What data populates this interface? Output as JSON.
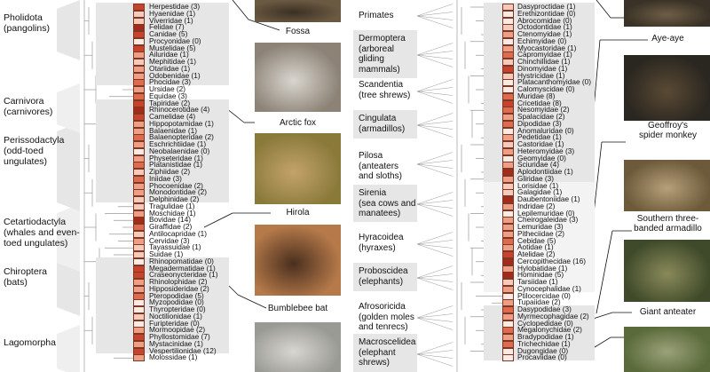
{
  "colors": {
    "band": "#e6e6e6",
    "branch": "#9a9a9a",
    "risk_scale": [
      "#fbe9e2",
      "#f6c9b8",
      "#ef9d83",
      "#e06a4c",
      "#c8432a",
      "#a52a17"
    ]
  },
  "left_orders": [
    {
      "name": "Pholidota\n(pangolins)"
    },
    {
      "name": "Carnivora\n(carnivores)"
    },
    {
      "name": "Perissodactyla\n(odd-toed\nungulates)"
    },
    {
      "name": "Cetartiodactyla\n(whales and even-\ntoed ungulates)"
    },
    {
      "name": "Chiroptera\n(bats)"
    },
    {
      "name": "Lagomorpha"
    }
  ],
  "left_families": [
    {
      "label": "Herpestidae (3)",
      "level": 4
    },
    {
      "label": "Hyaenidae (1)",
      "level": 1
    },
    {
      "label": "Viverridae (1)",
      "level": 1
    },
    {
      "label": "Felidae (7)",
      "level": 5
    },
    {
      "label": "Canidae (5)",
      "level": 4
    },
    {
      "label": "Procyonidae (0)",
      "level": 0
    },
    {
      "label": "Mustelidae (5)",
      "level": 4
    },
    {
      "label": "Ailuridae (1)",
      "level": 2
    },
    {
      "label": "Mephitidae (1)",
      "level": 1
    },
    {
      "label": "Otariidae (1)",
      "level": 2
    },
    {
      "label": "Odobenidae (1)",
      "level": 2
    },
    {
      "label": "Phocidae (3)",
      "level": 3
    },
    {
      "label": "Ursidae (2)",
      "level": 2
    },
    {
      "label": "Equidae (3)",
      "level": 3
    },
    {
      "label": "Tapiridae (2)",
      "level": 4
    },
    {
      "label": "Rhinocerotidae (4)",
      "level": 5
    },
    {
      "label": "Camelidae (4)",
      "level": 4
    },
    {
      "label": "Hippopotamidae (1)",
      "level": 2
    },
    {
      "label": "Balaenidae (1)",
      "level": 2
    },
    {
      "label": "Balaenopteridae (2)",
      "level": 3
    },
    {
      "label": "Eschrichtiidae (1)",
      "level": 2
    },
    {
      "label": "Neobalaenidae (0)",
      "level": 0
    },
    {
      "label": "Physeteridae (1)",
      "level": 2
    },
    {
      "label": "Platanistidae (1)",
      "level": 3
    },
    {
      "label": "Ziphiidae (2)",
      "level": 1
    },
    {
      "label": "Iniidae (3)",
      "level": 3
    },
    {
      "label": "Phocoenidae (2)",
      "level": 2
    },
    {
      "label": "Monodontidae (2)",
      "level": 2
    },
    {
      "label": "Delphinidae (2)",
      "level": 1
    },
    {
      "label": "Tragulidae (1)",
      "level": 1
    },
    {
      "label": "Moschidae (1)",
      "level": 2
    },
    {
      "label": "Bovidae (14)",
      "level": 5
    },
    {
      "label": "Giraffidae (2)",
      "level": 3
    },
    {
      "label": "Antilocapridae (1)",
      "level": 1
    },
    {
      "label": "Cervidae (3)",
      "level": 2
    },
    {
      "label": "Tayassuidae (1)",
      "level": 1
    },
    {
      "label": "Suidae (1)",
      "level": 1
    },
    {
      "label": "Rhinopomatidae (0)",
      "level": 0
    },
    {
      "label": "Megadermatidae (1)",
      "level": 4
    },
    {
      "label": "Craseonycteridae (1)",
      "level": 4
    },
    {
      "label": "Rhinolophidae (2)",
      "level": 2
    },
    {
      "label": "Hipposideridae (2)",
      "level": 2
    },
    {
      "label": "Pteropodidae (5)",
      "level": 3
    },
    {
      "label": "Myzopodidae (0)",
      "level": 0
    },
    {
      "label": "Thyropteridae (0)",
      "level": 0
    },
    {
      "label": "Noctilionidae (1)",
      "level": 1
    },
    {
      "label": "Furipteridae (0)",
      "level": 0
    },
    {
      "label": "Mormoopidae (2)",
      "level": 2
    },
    {
      "label": "Phyllostomidae (7)",
      "level": 4
    },
    {
      "label": "Mystacinidae (1)",
      "level": 2
    },
    {
      "label": "Vespertilionidae (12)",
      "level": 4
    },
    {
      "label": "Molossidae (1)",
      "level": 2
    }
  ],
  "right_orders": [
    {
      "name": "Primates"
    },
    {
      "name": "Dermoptera\n(arboreal\ngliding\nmammals)"
    },
    {
      "name": "Scandentia\n(tree shrews)"
    },
    {
      "name": "Cingulata\n(armadillos)"
    },
    {
      "name": "Pilosa\n(anteaters\nand sloths)"
    },
    {
      "name": "Sirenia\n(sea cows and\nmanatees)"
    },
    {
      "name": "Hyracoidea\n(hyraxes)"
    },
    {
      "name": "Proboscidea\n(elephants)"
    },
    {
      "name": "Afrosoricida\n(golden moles\nand tenrecs)"
    },
    {
      "name": "Macroscelidea\n(elephant\nshrews)"
    }
  ],
  "right_families": [
    {
      "label": "Dasyproctidae (1)",
      "level": 1
    },
    {
      "label": "Erethizontidae (0)",
      "level": 0
    },
    {
      "label": "Abrocomidae (0)",
      "level": 0
    },
    {
      "label": "Octodontidae (1)",
      "level": 1
    },
    {
      "label": "Ctenomyidae (1)",
      "level": 2
    },
    {
      "label": "Echimyidae (0)",
      "level": 0
    },
    {
      "label": "Myocastoridae (1)",
      "level": 2
    },
    {
      "label": "Capromyidae (1)",
      "level": 3
    },
    {
      "label": "Chinchillidae (1)",
      "level": 1
    },
    {
      "label": "Dinomyidae (1)",
      "level": 4
    },
    {
      "label": "Hystricidae (1)",
      "level": 1
    },
    {
      "label": "Platacanthomyidae (0)",
      "level": 0
    },
    {
      "label": "Calomyscidae (0)",
      "level": 0
    },
    {
      "label": "Muridae (8)",
      "level": 3
    },
    {
      "label": "Cricetidae (8)",
      "level": 4
    },
    {
      "label": "Nesomyidae (2)",
      "level": 3
    },
    {
      "label": "Spalacidae (2)",
      "level": 2
    },
    {
      "label": "Dipodidae (3)",
      "level": 3
    },
    {
      "label": "Anomaluridae (0)",
      "level": 0
    },
    {
      "label": "Pedetidae (1)",
      "level": 2
    },
    {
      "label": "Castoridae (1)",
      "level": 1
    },
    {
      "label": "Heteromyidae (3)",
      "level": 2
    },
    {
      "label": "Geomyidae (0)",
      "level": 0
    },
    {
      "label": "Sciuridae (4)",
      "level": 2
    },
    {
      "label": "Aplodontiidae (1)",
      "level": 5
    },
    {
      "label": "Gliridae (3)",
      "level": 2
    },
    {
      "label": "Lorisidae (1)",
      "level": 1
    },
    {
      "label": "Galagidae (1)",
      "level": 1
    },
    {
      "label": "Daubentoniidae (1)",
      "level": 5
    },
    {
      "label": "Indridae (2)",
      "level": 2
    },
    {
      "label": "Lepilemuridae (0)",
      "level": 0
    },
    {
      "label": "Cheirogaleidae (3)",
      "level": 2
    },
    {
      "label": "Lemuridae (3)",
      "level": 2
    },
    {
      "label": "Pitheciidae (2)",
      "level": 2
    },
    {
      "label": "Cebidae (5)",
      "level": 3
    },
    {
      "label": "Aotidae (1)",
      "level": 2
    },
    {
      "label": "Atelidae (2)",
      "level": 4
    },
    {
      "label": "Cercopithecidae (16)",
      "level": 5
    },
    {
      "label": "Hylobatidae (1)",
      "level": 2
    },
    {
      "label": "Hominidae (5)",
      "level": 5
    },
    {
      "label": "Tarsiidae (1)",
      "level": 1
    },
    {
      "label": "Cynocephalidae (1)",
      "level": 2
    },
    {
      "label": "Ptilocercidae (0)",
      "level": 0
    },
    {
      "label": "Tupaiidae (2)",
      "level": 2
    },
    {
      "label": "Dasypodidae (3)",
      "level": 3
    },
    {
      "label": "Myrmecophagidae (2)",
      "level": 2
    },
    {
      "label": "Cyclopedidae (0)",
      "level": 0
    },
    {
      "label": "Megalonychidae (2)",
      "level": 3
    },
    {
      "label": "Bradypodidae (1)",
      "level": 2
    },
    {
      "label": "Trichechidae (1)",
      "level": 3
    },
    {
      "label": "Dugongidae (0)",
      "level": 0
    },
    {
      "label": "Procaviidae (0)",
      "level": 0
    }
  ],
  "mid_photos": [
    {
      "label": "Fossa",
      "icon": "fossa-photo"
    },
    {
      "label": "Arctic fox",
      "icon": "arctic-fox-photo"
    },
    {
      "label": "Hirola",
      "icon": "hirola-photo"
    },
    {
      "label": "Bumblebee bat",
      "icon": "bat-photo"
    },
    {
      "label": "",
      "icon": "hare-photo"
    }
  ],
  "right_photos": [
    {
      "label": "",
      "icon": "rodent-photo"
    },
    {
      "label": "Aye-aye",
      "icon": "aye-aye-photo"
    },
    {
      "label": "Geoffroy's\nspider monkey",
      "icon": "spider-monkey-photo"
    },
    {
      "label": "Southern three-\nbanded armadillo",
      "icon": "armadillo-photo"
    },
    {
      "label": "Giant anteater",
      "icon": "anteater-photo"
    },
    {
      "label": "",
      "icon": "sloth-photo"
    }
  ]
}
